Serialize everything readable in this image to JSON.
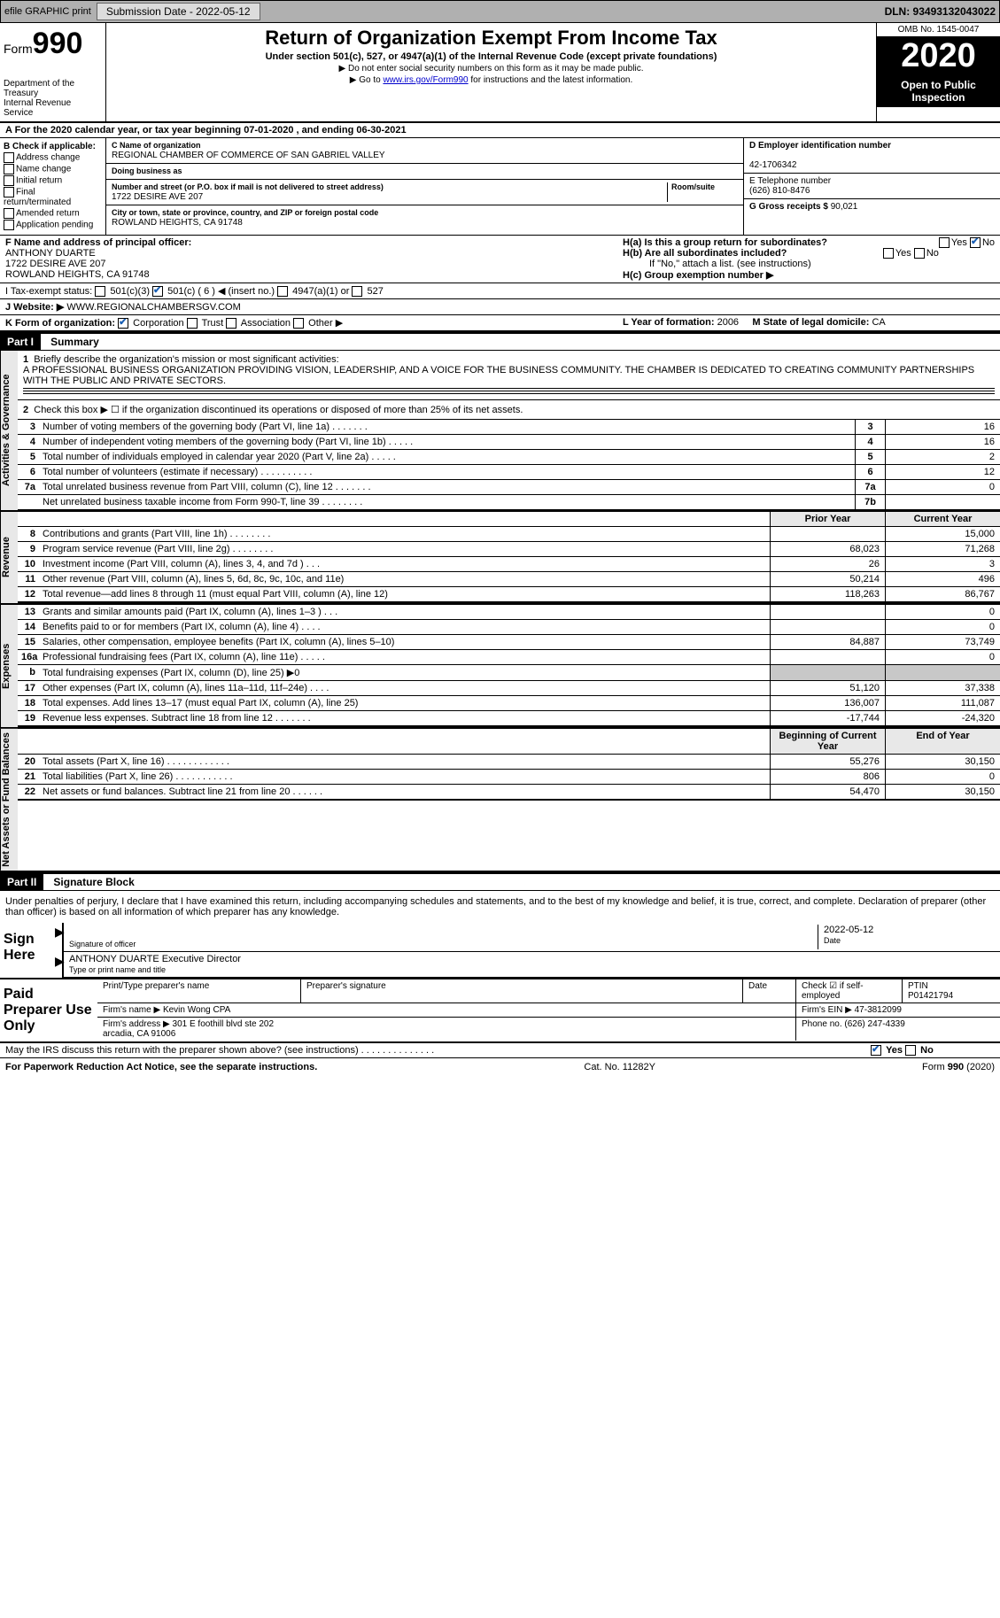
{
  "top": {
    "efile": "efile GRAPHIC print",
    "submission": "Submission Date - 2022-05-12",
    "dln": "DLN: 93493132043022"
  },
  "header": {
    "form_word": "Form",
    "form_num": "990",
    "title": "Return of Organization Exempt From Income Tax",
    "subtitle": "Under section 501(c), 527, or 4947(a)(1) of the Internal Revenue Code (except private foundations)",
    "note1": "▶ Do not enter social security numbers on this form as it may be made public.",
    "note2_pre": "▶ Go to ",
    "note2_link": "www.irs.gov/Form990",
    "note2_post": " for instructions and the latest information.",
    "dept": "Department of the Treasury\nInternal Revenue Service",
    "omb": "OMB No. 1545-0047",
    "year": "2020",
    "inspect": "Open to Public Inspection"
  },
  "period": "A For the 2020 calendar year, or tax year beginning 07-01-2020    , and ending 06-30-2021",
  "colB": {
    "hdr": "B Check if applicable:",
    "items": [
      "Address change",
      "Name change",
      "Initial return",
      "Final return/terminated",
      "Amended return",
      "Application pending"
    ]
  },
  "org": {
    "c_label": "C Name of organization",
    "name": "REGIONAL CHAMBER OF COMMERCE OF SAN GABRIEL VALLEY",
    "dba_label": "Doing business as",
    "addr_label": "Number and street (or P.O. box if mail is not delivered to street address)",
    "room_label": "Room/suite",
    "addr": "1722 DESIRE AVE 207",
    "city_label": "City or town, state or province, country, and ZIP or foreign postal code",
    "city": "ROWLAND HEIGHTS, CA  91748"
  },
  "right": {
    "d_label": "D Employer identification number",
    "ein": "42-1706342",
    "e_label": "E Telephone number",
    "phone": "(626) 810-8476",
    "g_label": "G Gross receipts $",
    "g_val": "90,021"
  },
  "F": {
    "label": "F Name and address of principal officer:",
    "name": "ANTHONY DUARTE",
    "addr1": "1722 DESIRE AVE 207",
    "addr2": "ROWLAND HEIGHTS, CA  91748"
  },
  "H": {
    "a": "H(a)  Is this a group return for subordinates?",
    "b": "H(b)  Are all subordinates included?",
    "b_note": "If \"No,\" attach a list. (see instructions)",
    "c": "H(c)  Group exemption number ▶"
  },
  "I": {
    "label": "I   Tax-exempt status:",
    "opt1": "501(c)(3)",
    "opt2": "501(c) ( 6 ) ◀ (insert no.)",
    "opt3": "4947(a)(1) or",
    "opt4": "527"
  },
  "J": {
    "label": "J   Website: ▶",
    "val": "WWW.REGIONALCHAMBERSGV.COM"
  },
  "K": {
    "label": "K Form of organization:",
    "opts": [
      "Corporation",
      "Trust",
      "Association",
      "Other ▶"
    ]
  },
  "L": {
    "label": "L Year of formation:",
    "val": "2006"
  },
  "M": {
    "label": "M State of legal domicile:",
    "val": "CA"
  },
  "partI": {
    "hdr": "Part I",
    "title": "Summary"
  },
  "mission": {
    "q": "Briefly describe the organization's mission or most significant activities:",
    "txt": "A PROFESSIONAL BUSINESS ORGANIZATION PROVIDING VISION, LEADERSHIP, AND A VOICE FOR THE BUSINESS COMMUNITY. THE CHAMBER IS DEDICATED TO CREATING COMMUNITY PARTNERSHIPS WITH THE PUBLIC AND PRIVATE SECTORS."
  },
  "line2": "Check this box ▶ ☐  if the organization discontinued its operations or disposed of more than 25% of its net assets.",
  "vtabs": {
    "gov": "Activities & Governance",
    "rev": "Revenue",
    "exp": "Expenses",
    "net": "Net Assets or Fund Balances"
  },
  "gov_rows": [
    {
      "n": "3",
      "d": "Number of voting members of the governing body (Part VI, line 1a)   .    .    .    .    .    .    .",
      "box": "3",
      "v": "16"
    },
    {
      "n": "4",
      "d": "Number of independent voting members of the governing body (Part VI, line 1b)   .    .    .    .    .",
      "box": "4",
      "v": "16"
    },
    {
      "n": "5",
      "d": "Total number of individuals employed in calendar year 2020 (Part V, line 2a)   .    .    .    .    .",
      "box": "5",
      "v": "2"
    },
    {
      "n": "6",
      "d": "Total number of volunteers (estimate if necessary)   .    .    .    .    .    .    .    .    .    .",
      "box": "6",
      "v": "12"
    },
    {
      "n": "7a",
      "d": "Total unrelated business revenue from Part VIII, column (C), line 12   .    .    .    .    .    .    .",
      "box": "7a",
      "v": "0"
    },
    {
      "n": "",
      "d": "Net unrelated business taxable income from Form 990-T, line 39   .    .    .    .    .    .    .    .",
      "box": "7b",
      "v": ""
    }
  ],
  "col_hdr": {
    "prior": "Prior Year",
    "curr": "Current Year"
  },
  "rev_rows": [
    {
      "n": "8",
      "d": "Contributions and grants (Part VIII, line 1h)   .    .    .    .    .    .    .    .",
      "p": "",
      "c": "15,000"
    },
    {
      "n": "9",
      "d": "Program service revenue (Part VIII, line 2g)   .    .    .    .    .    .    .    .",
      "p": "68,023",
      "c": "71,268"
    },
    {
      "n": "10",
      "d": "Investment income (Part VIII, column (A), lines 3, 4, and 7d )   .    .    .",
      "p": "26",
      "c": "3"
    },
    {
      "n": "11",
      "d": "Other revenue (Part VIII, column (A), lines 5, 6d, 8c, 9c, 10c, and 11e)",
      "p": "50,214",
      "c": "496"
    },
    {
      "n": "12",
      "d": "Total revenue—add lines 8 through 11 (must equal Part VIII, column (A), line 12)",
      "p": "118,263",
      "c": "86,767"
    }
  ],
  "exp_rows": [
    {
      "n": "13",
      "d": "Grants and similar amounts paid (Part IX, column (A), lines 1–3 )   .    .    .",
      "p": "",
      "c": "0"
    },
    {
      "n": "14",
      "d": "Benefits paid to or for members (Part IX, column (A), line 4)   .    .    .    .",
      "p": "",
      "c": "0"
    },
    {
      "n": "15",
      "d": "Salaries, other compensation, employee benefits (Part IX, column (A), lines 5–10)",
      "p": "84,887",
      "c": "73,749"
    },
    {
      "n": "16a",
      "d": "Professional fundraising fees (Part IX, column (A), line 11e)   .    .    .    .    .",
      "p": "",
      "c": "0"
    },
    {
      "n": "b",
      "d": "Total fundraising expenses (Part IX, column (D), line 25) ▶0",
      "p": "",
      "c": ""
    },
    {
      "n": "17",
      "d": "Other expenses (Part IX, column (A), lines 11a–11d, 11f–24e)   .    .    .    .",
      "p": "51,120",
      "c": "37,338"
    },
    {
      "n": "18",
      "d": "Total expenses. Add lines 13–17 (must equal Part IX, column (A), line 25)",
      "p": "136,007",
      "c": "111,087"
    },
    {
      "n": "19",
      "d": "Revenue less expenses. Subtract line 18 from line 12   .    .    .    .    .    .    .",
      "p": "-17,744",
      "c": "-24,320"
    }
  ],
  "net_hdr": {
    "begin": "Beginning of Current Year",
    "end": "End of Year"
  },
  "net_rows": [
    {
      "n": "20",
      "d": "Total assets (Part X, line 16)   .    .    .    .    .    .    .    .    .    .    .    .",
      "p": "55,276",
      "c": "30,150"
    },
    {
      "n": "21",
      "d": "Total liabilities (Part X, line 26)   .    .    .    .    .    .    .    .    .    .    .",
      "p": "806",
      "c": "0"
    },
    {
      "n": "22",
      "d": "Net assets or fund balances. Subtract line 21 from line 20   .    .    .    .    .    .",
      "p": "54,470",
      "c": "30,150"
    }
  ],
  "partII": {
    "hdr": "Part II",
    "title": "Signature Block"
  },
  "penalty": "Under penalties of perjury, I declare that I have examined this return, including accompanying schedules and statements, and to the best of my knowledge and belief, it is true, correct, and complete. Declaration of preparer (other than officer) is based on all information of which preparer has any knowledge.",
  "sign": {
    "here": "Sign Here",
    "sig_label": "Signature of officer",
    "date_label": "Date",
    "date": "2022-05-12",
    "name": "ANTHONY DUARTE Executive Director",
    "name_label": "Type or print name and title"
  },
  "prep": {
    "title": "Paid Preparer Use Only",
    "h1": "Print/Type preparer's name",
    "h2": "Preparer's signature",
    "h3": "Date",
    "h4": "Check ☑ if self-employed",
    "h5": "PTIN",
    "ptin": "P01421794",
    "firm_label": "Firm's name    ▶",
    "firm": "Kevin Wong CPA",
    "ein_label": "Firm's EIN ▶",
    "ein": "47-3812099",
    "addr_label": "Firm's address ▶",
    "addr": "301 E foothill blvd ste 202\narcadia, CA  91006",
    "phone_label": "Phone no.",
    "phone": "(626) 247-4339"
  },
  "discuss": "May the IRS discuss this return with the preparer shown above? (see instructions)   .    .    .    .    .    .    .    .    .    .    .    .    .    .",
  "footer": {
    "left": "For Paperwork Reduction Act Notice, see the separate instructions.",
    "mid": "Cat. No. 11282Y",
    "right": "Form 990 (2020)"
  },
  "colors": {
    "link": "#0000cc",
    "check": "#1a5fb4",
    "gray_bg": "#e8e8e8",
    "topbar": "#b0b0b0"
  }
}
